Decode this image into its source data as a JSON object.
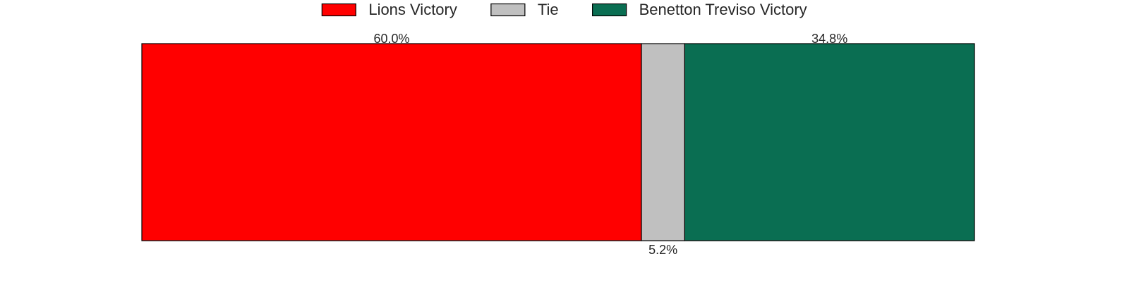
{
  "chart_data": {
    "type": "bar",
    "orientation": "horizontal",
    "stacked": true,
    "categories": [
      ""
    ],
    "series": [
      {
        "name": "Lions Victory",
        "values": [
          60.0
        ],
        "label": "60.0%",
        "color": "#ff0000"
      },
      {
        "name": "Tie",
        "values": [
          5.2
        ],
        "label": "5.2%",
        "color": "#c0c0c0"
      },
      {
        "name": "Benetton Treviso Victory",
        "values": [
          34.8
        ],
        "label": "34.8%",
        "color": "#0a6e52"
      }
    ],
    "xlim": [
      0,
      100
    ],
    "grid": false,
    "legend_position": "top-center",
    "title": "",
    "xlabel": "",
    "ylabel": ""
  }
}
